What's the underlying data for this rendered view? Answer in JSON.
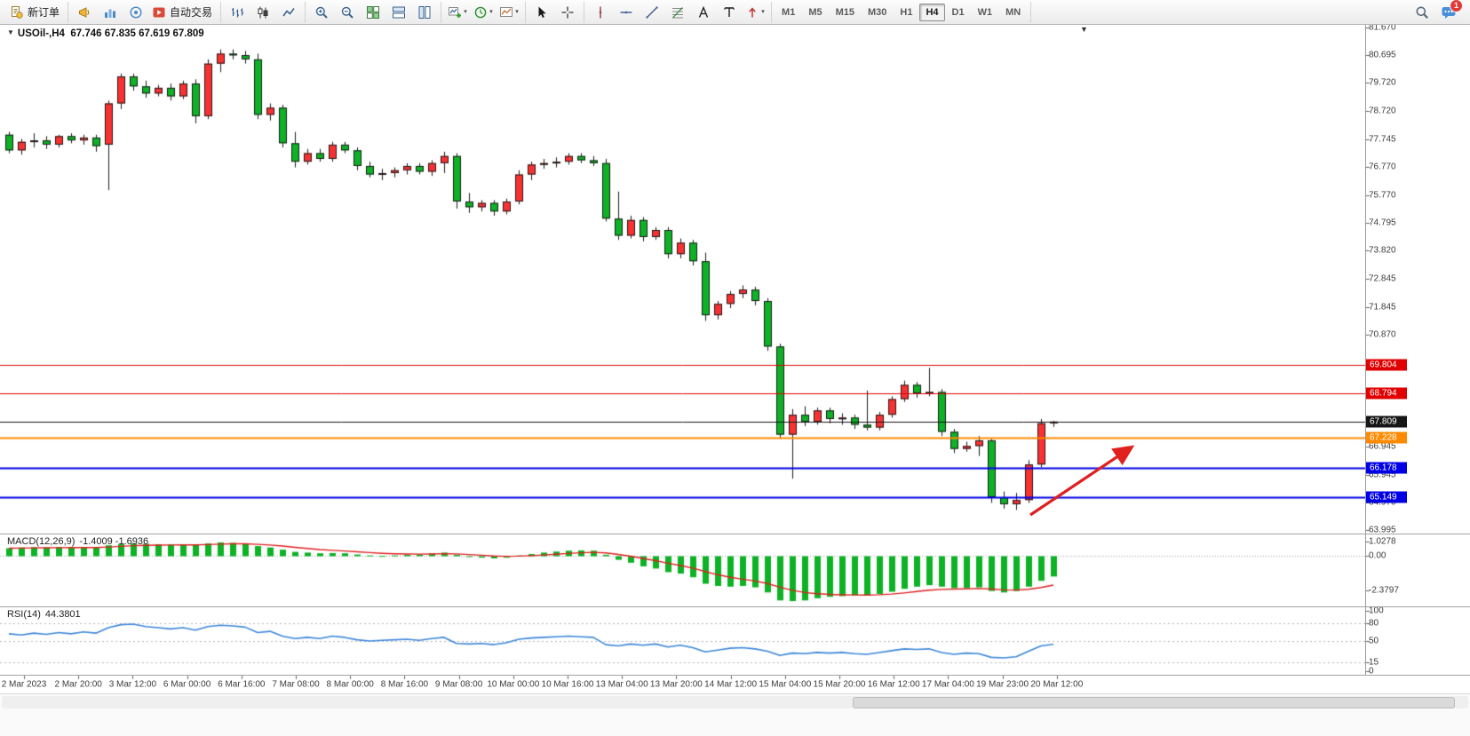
{
  "toolbar": {
    "groups": [
      {
        "items": [
          {
            "icon": "new-order-icon",
            "label": "新订单",
            "name": "new-order-button"
          }
        ]
      },
      {
        "items": [
          {
            "icon": "alerts-icon",
            "name": "alerts-button"
          },
          {
            "icon": "market-watch-icon",
            "name": "market-watch-button"
          },
          {
            "icon": "signals-icon",
            "name": "signals-button"
          },
          {
            "icon": "autotrade-icon",
            "label": "自动交易",
            "name": "auto-trading-button"
          }
        ]
      },
      {
        "items": [
          {
            "icon": "bar-chart-icon",
            "name": "bar-chart-button"
          },
          {
            "icon": "candle-chart-icon",
            "name": "candlestick-chart-button"
          },
          {
            "icon": "line-chart-icon",
            "name": "line-chart-button"
          }
        ]
      },
      {
        "items": [
          {
            "icon": "zoom-in-icon",
            "name": "zoom-in-button"
          },
          {
            "icon": "zoom-out-icon",
            "name": "zoom-out-button"
          },
          {
            "icon": "tile-windows-icon",
            "name": "tile-windows-button"
          },
          {
            "icon": "tile-horizontal-icon",
            "name": "tile-horizontal-button"
          },
          {
            "icon": "tile-vertical-icon",
            "name": "tile-vertical-button"
          }
        ]
      },
      {
        "items": [
          {
            "icon": "new-chart-icon",
            "name": "new-chart-button",
            "caret": true
          },
          {
            "icon": "clock-icon",
            "name": "chart-periods-button",
            "caret": true
          },
          {
            "icon": "template-icon",
            "name": "chart-template-button",
            "caret": true
          }
        ]
      },
      {
        "items": [
          {
            "icon": "cursor-icon",
            "name": "cursor-button"
          },
          {
            "icon": "crosshair-icon",
            "name": "crosshair-button"
          }
        ]
      },
      {
        "items": [
          {
            "icon": "vline-icon",
            "name": "vertical-line-button"
          },
          {
            "icon": "hline-icon",
            "name": "horizontal-line-button"
          },
          {
            "icon": "trendline-icon",
            "name": "trendline-button"
          },
          {
            "icon": "fibo-icon",
            "name": "fibonacci-button"
          },
          {
            "icon": "text-icon",
            "name": "text-button"
          },
          {
            "icon": "label-icon",
            "name": "text-label-button"
          },
          {
            "icon": "arrows-icon",
            "name": "arrows-button",
            "caret": true
          }
        ]
      }
    ],
    "timeframes": [
      {
        "label": "M1"
      },
      {
        "label": "M5"
      },
      {
        "label": "M15"
      },
      {
        "label": "M30"
      },
      {
        "label": "H1"
      },
      {
        "label": "H4",
        "active": true
      },
      {
        "label": "D1"
      },
      {
        "label": "W1"
      },
      {
        "label": "MN"
      }
    ],
    "right": [
      {
        "icon": "search-icon",
        "name": "search-button"
      },
      {
        "icon": "chat-icon",
        "name": "notifications-button",
        "badge": "1"
      }
    ]
  },
  "chart": {
    "title_symbol": "USOil-,H4",
    "title_ohlc": "67.746 67.835 67.619 67.809",
    "axis_labels": [
      "81.670",
      "80.695",
      "79.720",
      "78.720",
      "77.745",
      "76.770",
      "75.770",
      "74.795",
      "73.820",
      "72.845",
      "71.845",
      "70.870",
      "66.945",
      "65.945",
      "64.970",
      "63.995"
    ],
    "hlines": [
      {
        "value": 69.804,
        "label": "69.804",
        "color": "#e00000",
        "width": 1
      },
      {
        "value": 68.794,
        "label": "68.794",
        "color": "#e00000",
        "width": 1
      },
      {
        "value": 67.809,
        "label": "67.809",
        "color": "#161616",
        "width": 1
      },
      {
        "value": 67.228,
        "label": "67.228",
        "color": "#ff8a00",
        "width": 2
      },
      {
        "value": 66.178,
        "label": "66.178",
        "color": "#0000e6",
        "width": 2
      },
      {
        "value": 65.149,
        "label": "65.149",
        "color": "#0000e6",
        "width": 2
      }
    ],
    "time_labels": [
      "2 Mar 2023",
      "2 Mar 20:00",
      "3 Mar 12:00",
      "6 Mar 00:00",
      "6 Mar 16:00",
      "7 Mar 08:00",
      "8 Mar 00:00",
      "8 Mar 16:00",
      "9 Mar 08:00",
      "10 Mar 00:00",
      "10 Mar 16:00",
      "13 Mar 04:00",
      "13 Mar 20:00",
      "14 Mar 12:00",
      "15 Mar 04:00",
      "15 Mar 20:00",
      "16 Mar 12:00",
      "17 Mar 04:00",
      "19 Mar 23:00",
      "20 Mar 12:00"
    ]
  },
  "chart_data": {
    "type": "candlestick",
    "symbol": "USOil-",
    "period": "H4",
    "ylim": [
      63.995,
      81.67
    ],
    "colors": {
      "bull": "#fb3131",
      "bear": "#0db225",
      "outline": "#1b1b1b",
      "macd_hist": "#0db225",
      "macd_signal": "#e02020",
      "rsi_line": "#3d87d8",
      "arrow": "#e01f1f"
    },
    "candles": [
      [
        77.9,
        78.0,
        77.25,
        77.35
      ],
      [
        77.35,
        77.75,
        77.2,
        77.65
      ],
      [
        77.65,
        77.95,
        77.45,
        77.7
      ],
      [
        77.7,
        77.85,
        77.4,
        77.55
      ],
      [
        77.55,
        77.9,
        77.45,
        77.85
      ],
      [
        77.85,
        77.95,
        77.6,
        77.7
      ],
      [
        77.7,
        77.9,
        77.55,
        77.8
      ],
      [
        77.8,
        77.9,
        77.3,
        77.5
      ],
      [
        77.55,
        79.1,
        75.95,
        79.0
      ],
      [
        79.0,
        80.05,
        78.8,
        79.95
      ],
      [
        79.95,
        80.05,
        79.45,
        79.6
      ],
      [
        79.6,
        79.8,
        79.2,
        79.35
      ],
      [
        79.35,
        79.65,
        79.25,
        79.55
      ],
      [
        79.55,
        79.7,
        79.1,
        79.25
      ],
      [
        79.25,
        79.8,
        79.15,
        79.7
      ],
      [
        79.7,
        79.85,
        78.3,
        78.55
      ],
      [
        78.55,
        80.55,
        78.45,
        80.4
      ],
      [
        80.4,
        80.9,
        80.1,
        80.75
      ],
      [
        80.75,
        80.9,
        80.55,
        80.7
      ],
      [
        80.7,
        80.85,
        80.4,
        80.55
      ],
      [
        80.55,
        80.75,
        78.45,
        78.6
      ],
      [
        78.6,
        79.0,
        78.4,
        78.85
      ],
      [
        78.85,
        78.95,
        77.45,
        77.6
      ],
      [
        77.6,
        78.0,
        76.75,
        76.95
      ],
      [
        76.95,
        77.4,
        76.85,
        77.25
      ],
      [
        77.25,
        77.4,
        76.95,
        77.05
      ],
      [
        77.05,
        77.65,
        76.95,
        77.55
      ],
      [
        77.55,
        77.65,
        77.25,
        77.35
      ],
      [
        77.35,
        77.45,
        76.65,
        76.8
      ],
      [
        76.8,
        76.95,
        76.4,
        76.5
      ],
      [
        76.5,
        76.7,
        76.3,
        76.55
      ],
      [
        76.55,
        76.75,
        76.4,
        76.65
      ],
      [
        76.65,
        76.9,
        76.5,
        76.8
      ],
      [
        76.8,
        76.9,
        76.5,
        76.6
      ],
      [
        76.6,
        77.0,
        76.45,
        76.9
      ],
      [
        76.9,
        77.3,
        76.55,
        77.15
      ],
      [
        77.15,
        77.25,
        75.3,
        75.55
      ],
      [
        75.55,
        75.85,
        75.15,
        75.35
      ],
      [
        75.35,
        75.6,
        75.2,
        75.5
      ],
      [
        75.5,
        75.6,
        75.05,
        75.2
      ],
      [
        75.2,
        75.65,
        75.1,
        75.55
      ],
      [
        75.55,
        76.65,
        75.45,
        76.5
      ],
      [
        76.5,
        76.95,
        76.3,
        76.85
      ],
      [
        76.85,
        77.05,
        76.7,
        76.9
      ],
      [
        76.9,
        77.1,
        76.75,
        76.95
      ],
      [
        76.95,
        77.25,
        76.85,
        77.15
      ],
      [
        77.15,
        77.25,
        76.9,
        77.0
      ],
      [
        77.0,
        77.15,
        76.8,
        76.9
      ],
      [
        76.9,
        77.05,
        74.85,
        74.95
      ],
      [
        74.95,
        75.9,
        74.2,
        74.35
      ],
      [
        74.35,
        75.05,
        74.25,
        74.9
      ],
      [
        74.9,
        75.0,
        74.15,
        74.3
      ],
      [
        74.3,
        74.65,
        74.2,
        74.55
      ],
      [
        74.55,
        74.65,
        73.55,
        73.7
      ],
      [
        73.7,
        74.25,
        73.55,
        74.1
      ],
      [
        74.1,
        74.2,
        73.3,
        73.45
      ],
      [
        73.45,
        73.75,
        71.35,
        71.55
      ],
      [
        71.55,
        72.05,
        71.4,
        71.95
      ],
      [
        71.95,
        72.4,
        71.8,
        72.3
      ],
      [
        72.3,
        72.6,
        72.15,
        72.45
      ],
      [
        72.45,
        72.55,
        71.9,
        72.05
      ],
      [
        72.05,
        72.15,
        70.3,
        70.45
      ],
      [
        70.45,
        70.55,
        67.2,
        67.35
      ],
      [
        67.35,
        68.25,
        65.8,
        68.05
      ],
      [
        68.05,
        68.35,
        67.65,
        67.8
      ],
      [
        67.8,
        68.3,
        67.7,
        68.2
      ],
      [
        68.2,
        68.3,
        67.75,
        67.9
      ],
      [
        67.9,
        68.1,
        67.7,
        67.95
      ],
      [
        67.95,
        68.05,
        67.55,
        67.7
      ],
      [
        67.7,
        68.9,
        67.5,
        67.6
      ],
      [
        67.6,
        68.15,
        67.5,
        68.05
      ],
      [
        68.05,
        68.7,
        67.95,
        68.6
      ],
      [
        68.6,
        69.25,
        68.5,
        69.1
      ],
      [
        69.1,
        69.2,
        68.65,
        68.8
      ],
      [
        68.8,
        69.7,
        68.7,
        68.85
      ],
      [
        68.85,
        68.95,
        67.3,
        67.45
      ],
      [
        67.45,
        67.55,
        66.7,
        66.85
      ],
      [
        66.85,
        67.1,
        66.75,
        66.95
      ],
      [
        66.95,
        67.3,
        66.6,
        67.15
      ],
      [
        67.15,
        67.2,
        64.95,
        65.15
      ],
      [
        65.15,
        65.35,
        64.75,
        64.9
      ],
      [
        64.9,
        65.3,
        64.7,
        65.05
      ],
      [
        65.05,
        66.45,
        64.95,
        66.3
      ],
      [
        66.3,
        67.9,
        66.2,
        67.75
      ],
      [
        67.746,
        67.835,
        67.619,
        67.809
      ]
    ],
    "macd": {
      "label": "MACD(12,26,9)",
      "values_text": "-1.4009 -1.6936",
      "ylim": [
        -3.4,
        1.5
      ],
      "scale": [
        "1.0278",
        "0.00",
        "-2.3797"
      ],
      "histogram": [
        0.55,
        0.6,
        0.62,
        0.6,
        0.63,
        0.6,
        0.62,
        0.6,
        0.75,
        0.85,
        0.88,
        0.85,
        0.82,
        0.8,
        0.82,
        0.78,
        0.88,
        0.95,
        0.92,
        0.85,
        0.7,
        0.6,
        0.45,
        0.3,
        0.25,
        0.2,
        0.22,
        0.2,
        0.12,
        0.05,
        0.02,
        0.05,
        0.1,
        0.12,
        0.18,
        0.25,
        0.1,
        -0.05,
        -0.1,
        -0.15,
        -0.1,
        0.05,
        0.15,
        0.25,
        0.32,
        0.38,
        0.4,
        0.38,
        0.1,
        -0.25,
        -0.45,
        -0.7,
        -0.85,
        -1.1,
        -1.2,
        -1.45,
        -1.9,
        -2.05,
        -2.1,
        -2.05,
        -2.15,
        -2.5,
        -3.05,
        -3.1,
        -3.05,
        -2.9,
        -2.8,
        -2.75,
        -2.7,
        -2.7,
        -2.6,
        -2.45,
        -2.25,
        -2.1,
        -2.0,
        -2.1,
        -2.2,
        -2.2,
        -2.15,
        -2.4,
        -2.5,
        -2.4,
        -2.1,
        -1.7,
        -1.4009
      ]
    },
    "rsi": {
      "label": "RSI(14)",
      "value_text": "44.3801",
      "ylim": [
        0,
        100
      ],
      "scale": [
        "100",
        "80",
        "50",
        "15",
        "0"
      ],
      "levels": [
        80,
        50,
        15
      ],
      "values": [
        62,
        60,
        63,
        61,
        64,
        62,
        65,
        63,
        72,
        77,
        78,
        74,
        72,
        70,
        72,
        68,
        74,
        76,
        75,
        73,
        64,
        66,
        58,
        54,
        56,
        54,
        58,
        56,
        52,
        50,
        51,
        52,
        53,
        51,
        54,
        56,
        46,
        45,
        46,
        44,
        47,
        53,
        55,
        56,
        57,
        58,
        57,
        56,
        44,
        42,
        45,
        43,
        45,
        40,
        43,
        39,
        32,
        35,
        38,
        39,
        37,
        33,
        26,
        30,
        29,
        31,
        30,
        31,
        29,
        28,
        31,
        34,
        37,
        36,
        37,
        31,
        28,
        30,
        29,
        23,
        22,
        24,
        33,
        42,
        44.3801
      ]
    }
  }
}
